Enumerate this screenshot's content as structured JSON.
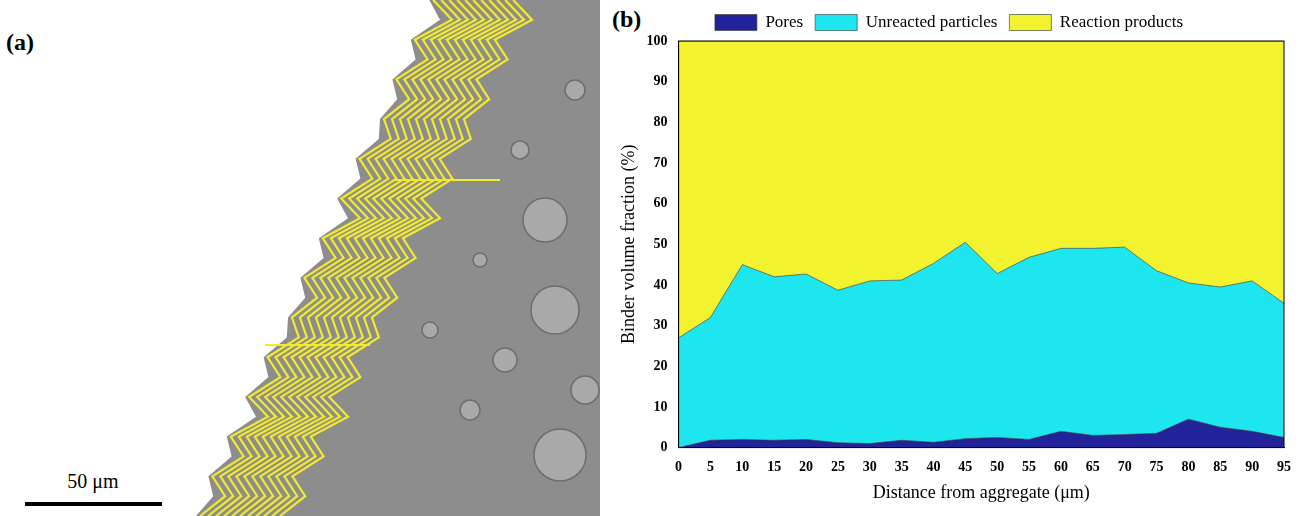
{
  "image_panel": {
    "label": "(a)",
    "scale_bar": "50 μm"
  },
  "chart_data": {
    "type": "area",
    "panel_label": "(b)",
    "x_label": "Distance from aggregate (μm)",
    "y_label": "Binder volume fraction (%)",
    "x": [
      0,
      5,
      10,
      15,
      20,
      25,
      30,
      35,
      40,
      45,
      50,
      55,
      60,
      65,
      70,
      75,
      80,
      85,
      90,
      95
    ],
    "series": [
      {
        "name": "Pores",
        "color": "#22229a",
        "values": [
          0,
          1.8,
          2,
          1.8,
          2,
          1.2,
          1,
          1.8,
          1.3,
          2.2,
          2.5,
          2,
          4,
          3,
          3.2,
          3.5,
          7,
          5,
          4,
          2.5
        ]
      },
      {
        "name": "Unreacted particles",
        "color": "#1ee6ee",
        "values": [
          27,
          30.2,
          43,
          40.2,
          40.7,
          37.5,
          40,
          39.4,
          44,
          48.3,
          40.3,
          44.8,
          45,
          46,
          46.1,
          40,
          33.5,
          34.5,
          37,
          33
        ]
      },
      {
        "name": "Reaction products",
        "color": "#f2f22e",
        "values": [
          73,
          68,
          55,
          58,
          57.3,
          61.3,
          59,
          58.8,
          54.7,
          49.5,
          57.2,
          53.2,
          51,
          51,
          50.7,
          56.5,
          59.5,
          60.5,
          59,
          64.5
        ]
      }
    ],
    "stacked": true,
    "xlim": [
      0,
      95
    ],
    "xticks": [
      0,
      5,
      10,
      15,
      20,
      25,
      30,
      35,
      40,
      45,
      50,
      55,
      60,
      65,
      70,
      75,
      80,
      85,
      90,
      95
    ],
    "ylim": [
      0,
      100
    ],
    "yticks": [
      0,
      10,
      20,
      30,
      40,
      50,
      60,
      70,
      80,
      90,
      100
    ],
    "grid": false,
    "legend": "top"
  }
}
